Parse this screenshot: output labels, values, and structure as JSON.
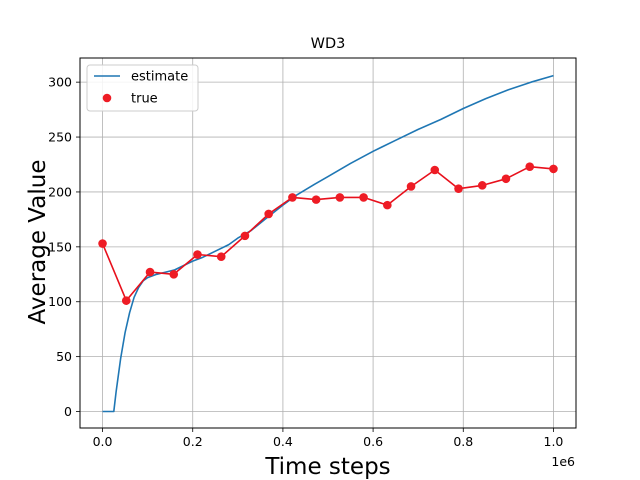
{
  "chart_data": {
    "type": "line",
    "title": "WD3",
    "xlabel": "Time steps",
    "ylabel": "Average Value",
    "x_offset_label": "1e6",
    "xlim": [
      -0.05,
      1.05
    ],
    "ylim": [
      -15,
      322
    ],
    "x_ticks": [
      0.0,
      0.2,
      0.4,
      0.6,
      0.8,
      1.0
    ],
    "x_tick_labels": [
      "0.0",
      "0.2",
      "0.4",
      "0.6",
      "0.8",
      "1.0"
    ],
    "y_ticks": [
      0,
      50,
      100,
      150,
      200,
      250,
      300
    ],
    "y_tick_labels": [
      "0",
      "50",
      "100",
      "150",
      "200",
      "250",
      "300"
    ],
    "grid": true,
    "legend_position": "top-left",
    "series": [
      {
        "name": "estimate",
        "color": "#1f77b4",
        "style": "line",
        "x": [
          0.0,
          0.01,
          0.02,
          0.025,
          0.03,
          0.04,
          0.05,
          0.06,
          0.07,
          0.08,
          0.09,
          0.1,
          0.12,
          0.14,
          0.16,
          0.18,
          0.2,
          0.22,
          0.25,
          0.28,
          0.3,
          0.33,
          0.36,
          0.4,
          0.43,
          0.47,
          0.5,
          0.55,
          0.6,
          0.65,
          0.7,
          0.75,
          0.8,
          0.85,
          0.9,
          0.95,
          1.0
        ],
        "y": [
          0,
          0,
          0,
          0,
          18,
          48,
          72,
          90,
          104,
          113,
          119,
          122,
          125,
          127,
          129,
          133,
          137,
          140,
          146,
          152,
          158,
          165,
          175,
          188,
          197,
          207,
          214,
          226,
          237,
          247,
          257,
          266,
          276,
          285,
          293,
          300,
          306
        ]
      },
      {
        "name": "true",
        "color": "#e8101c",
        "marker_color": "#ee1c25",
        "style": "line-marker",
        "x": [
          0.0,
          0.0526,
          0.1053,
          0.1579,
          0.2105,
          0.2632,
          0.3158,
          0.3684,
          0.4211,
          0.4737,
          0.5263,
          0.5789,
          0.6316,
          0.6842,
          0.7368,
          0.7895,
          0.8421,
          0.8947,
          0.9474,
          1.0
        ],
        "y": [
          153,
          101,
          127,
          125,
          143,
          141,
          160,
          180,
          195,
          193,
          195,
          195,
          188,
          205,
          220,
          203,
          206,
          212,
          223,
          221
        ]
      }
    ]
  }
}
